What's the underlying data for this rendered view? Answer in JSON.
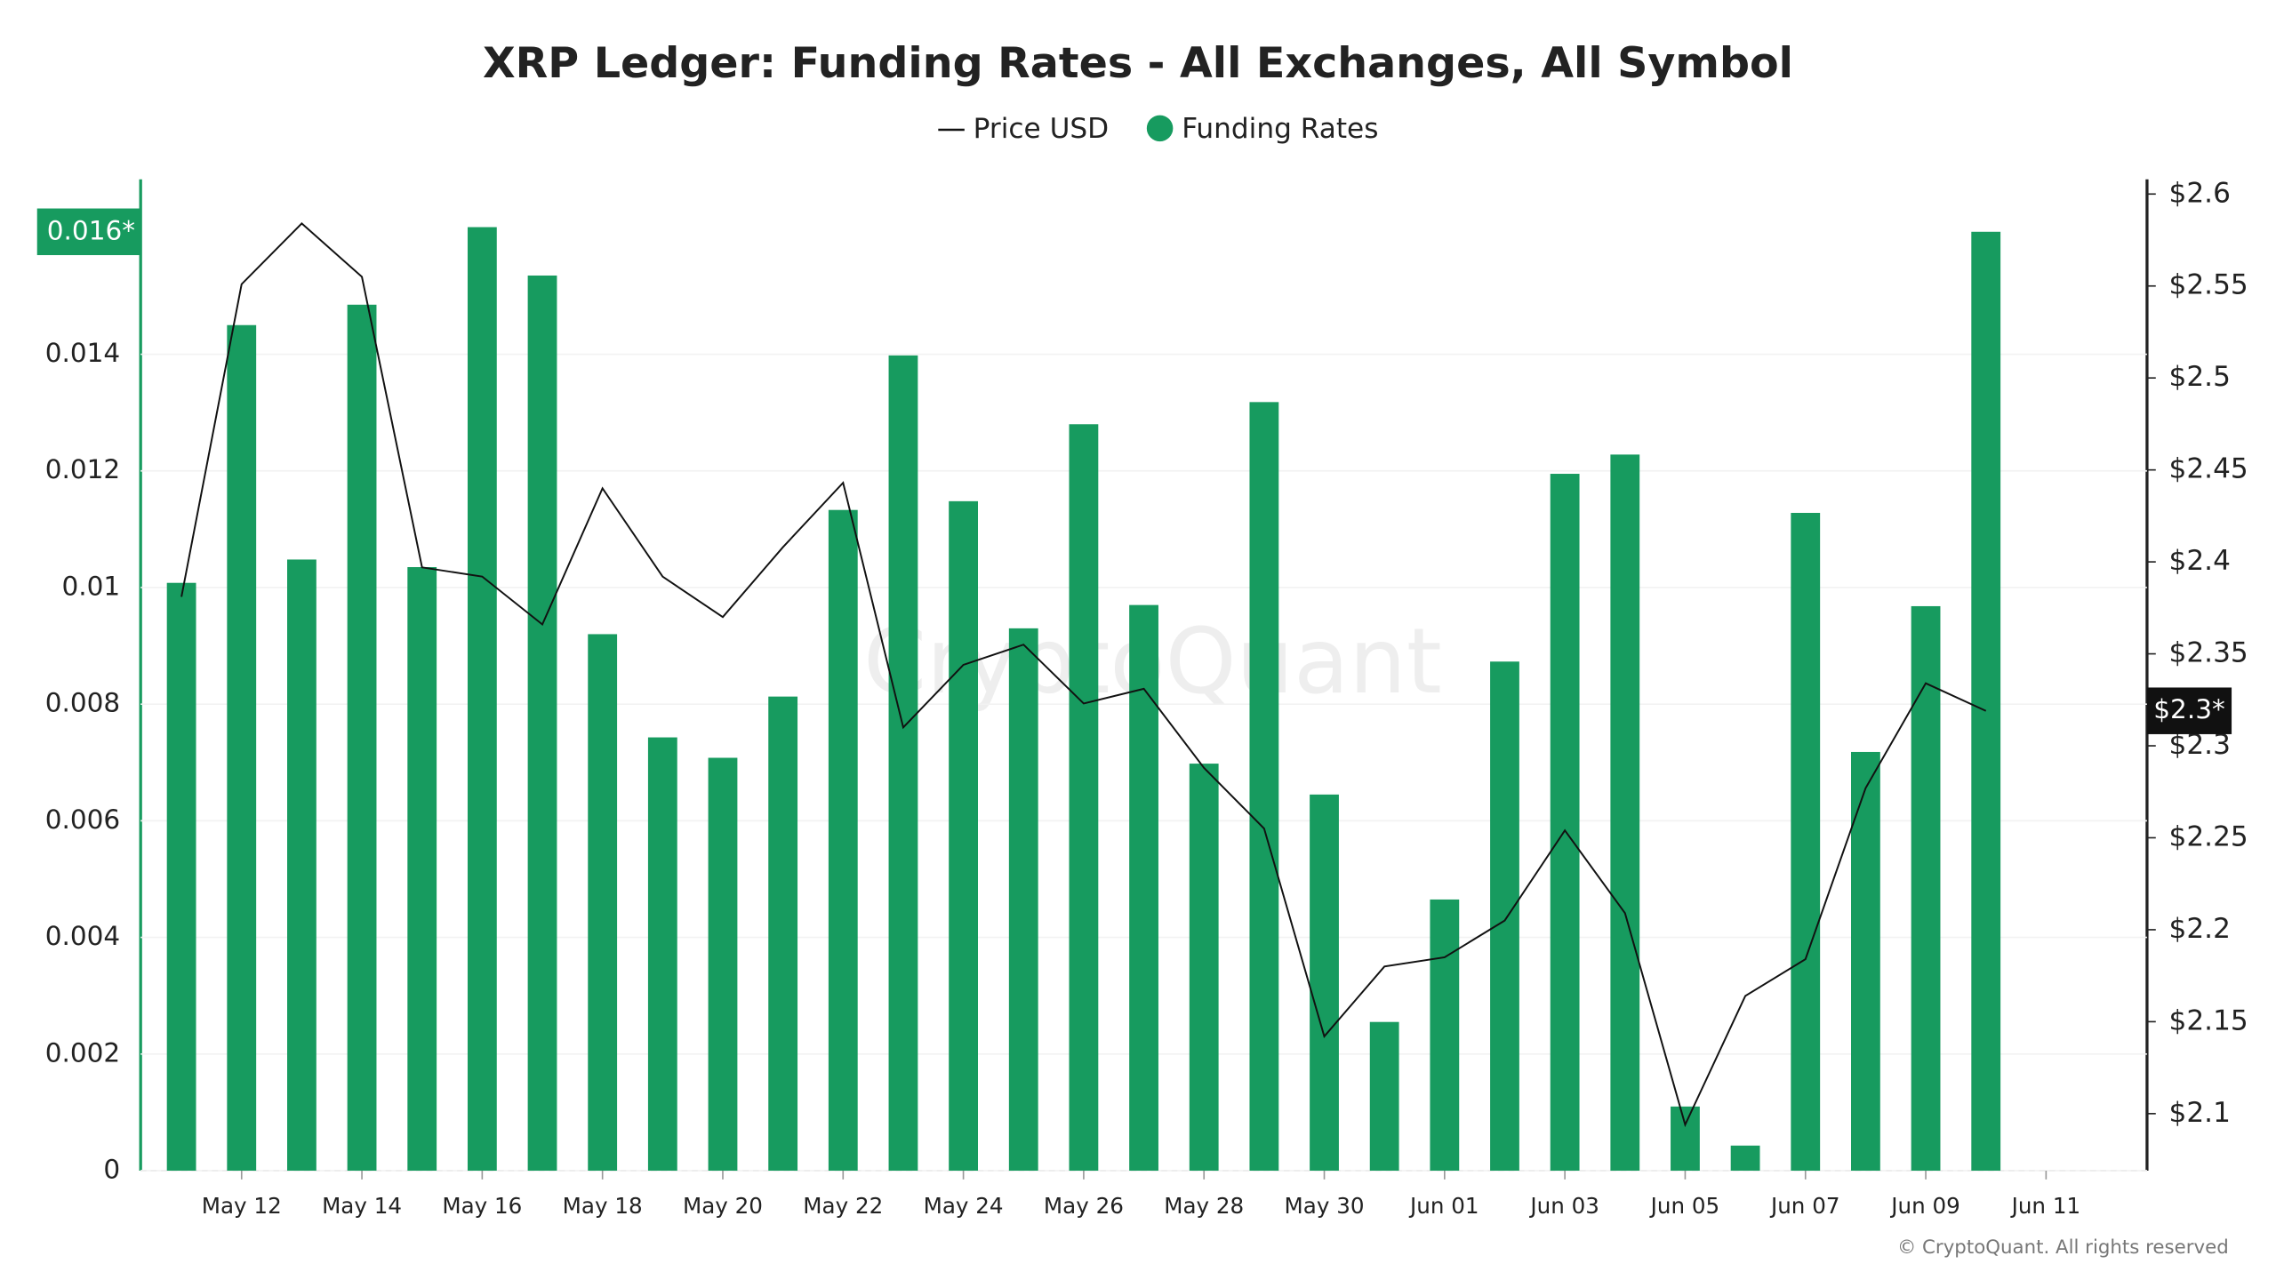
{
  "chart_data": {
    "type": "bar",
    "title": "XRP Ledger: Funding Rates - All Exchanges, All Symbol",
    "categories": [
      null,
      "May 12",
      null,
      "May 14",
      null,
      "May 16",
      null,
      "May 18",
      null,
      "May 20",
      null,
      "May 22",
      null,
      "May 24",
      null,
      "May 26",
      null,
      "May 28",
      null,
      "May 30",
      null,
      "Jun 01",
      null,
      "Jun 03",
      null,
      "Jun 05",
      null,
      "Jun 07",
      null,
      "Jun 09",
      null,
      "Jun 11"
    ],
    "series": [
      {
        "name": "Price USD",
        "type": "line",
        "axis": "y2",
        "color": "#111111",
        "current_label": "$2.3*",
        "values": [
          2.381,
          2.551,
          2.584,
          2.555,
          2.397,
          2.392,
          2.366,
          2.44,
          2.392,
          2.37,
          2.408,
          2.443,
          2.31,
          2.344,
          2.355,
          2.323,
          2.331,
          2.288,
          2.255,
          2.142,
          2.18,
          2.185,
          2.205,
          2.254,
          2.209,
          2.094,
          2.164,
          2.184,
          2.277,
          2.334,
          2.319,
          null
        ]
      },
      {
        "name": "Funding Rates",
        "type": "bar",
        "color": "#179b5f",
        "current_label": "0.016*",
        "values": [
          0.01008,
          0.0145,
          0.01048,
          0.01485,
          0.01035,
          0.01618,
          0.01535,
          0.0092,
          0.00743,
          0.00708,
          0.00813,
          0.01133,
          0.01398,
          0.01148,
          0.0093,
          0.0128,
          0.0097,
          0.00698,
          0.01318,
          0.00645,
          0.00255,
          0.00465,
          0.00873,
          0.01195,
          0.01228,
          0.0011,
          0.00043,
          0.01128,
          0.00718,
          0.00968,
          0.0161,
          null
        ]
      }
    ],
    "ylim": [
      0,
      0.017
    ],
    "yticks": [
      0,
      0.002,
      0.004,
      0.006,
      0.008,
      0.01,
      0.012,
      0.014
    ],
    "y2lim": [
      2.069,
      2.608
    ],
    "y2ticks": [
      {
        "value": 2.1,
        "label": "$2.1"
      },
      {
        "value": 2.15,
        "label": "$2.15"
      },
      {
        "value": 2.2,
        "label": "$2.2"
      },
      {
        "value": 2.25,
        "label": "$2.25"
      },
      {
        "value": 2.3,
        "label": "$2.3"
      },
      {
        "value": 2.35,
        "label": "$2.35"
      },
      {
        "value": 2.4,
        "label": "$2.4"
      },
      {
        "value": 2.45,
        "label": "$2.45"
      },
      {
        "value": 2.5,
        "label": "$2.5"
      },
      {
        "value": 2.55,
        "label": "$2.55"
      },
      {
        "value": 2.6,
        "label": "$2.6"
      }
    ],
    "grid": true,
    "legend": "top",
    "watermark": "CryptoQuant",
    "copyright": "© CryptoQuant. All rights reserved"
  }
}
